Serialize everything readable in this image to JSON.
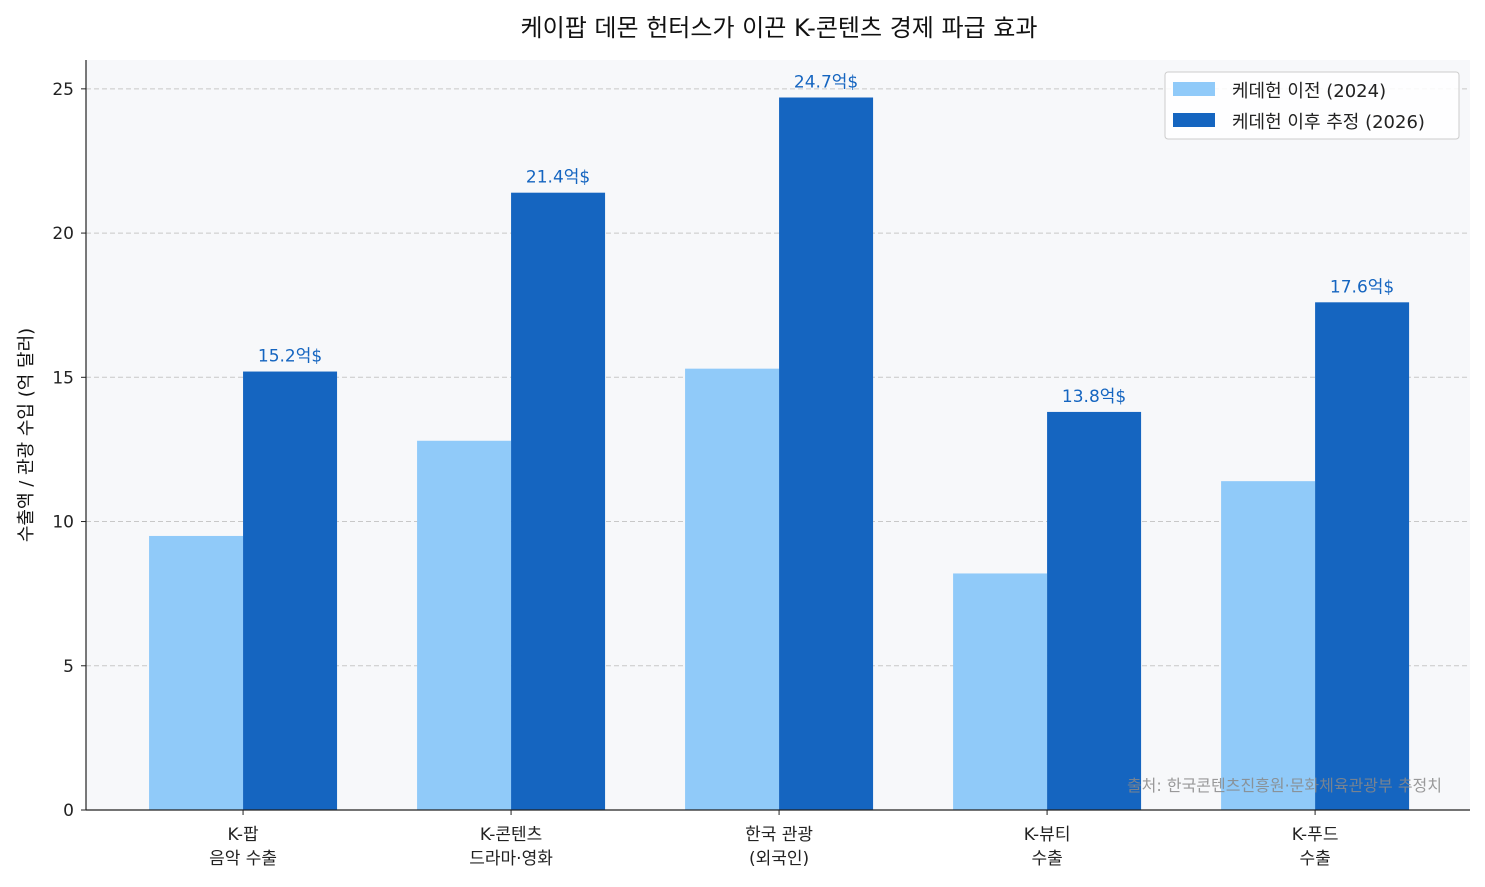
{
  "chart_data": {
    "type": "bar",
    "title": "케이팝 데몬 헌터스가 이끈 K-콘텐츠 경제 파급 효과",
    "xlabel": "",
    "ylabel": "수출액 / 관광 수입 (억 달러)",
    "ylim": [
      0,
      26
    ],
    "yticks": [
      0,
      5,
      10,
      15,
      20,
      25
    ],
    "grid": "y dashed",
    "legend_position": "top-right",
    "categories": [
      [
        "K-팝",
        "음악 수출"
      ],
      [
        "K-콘텐츠",
        "드라마·영화"
      ],
      [
        "한국 관광",
        "(외국인)"
      ],
      [
        "K-뷰티",
        "수출"
      ],
      [
        "K-푸드",
        "수출"
      ]
    ],
    "series": [
      {
        "name": "케데헌 이전 (2024)",
        "color": "#90caf9",
        "values": [
          9.5,
          12.8,
          15.3,
          8.2,
          11.4
        ]
      },
      {
        "name": "케데헌 이후 추정 (2026)",
        "color": "#1565c0",
        "values": [
          15.2,
          21.4,
          24.7,
          13.8,
          17.6
        ]
      }
    ],
    "data_labels": [
      "15.2억$",
      "21.4억$",
      "24.7억$",
      "13.8억$",
      "17.6억$"
    ],
    "annotation": "출처: 한국콘텐츠진흥원·문화체육관광부 추정치"
  }
}
